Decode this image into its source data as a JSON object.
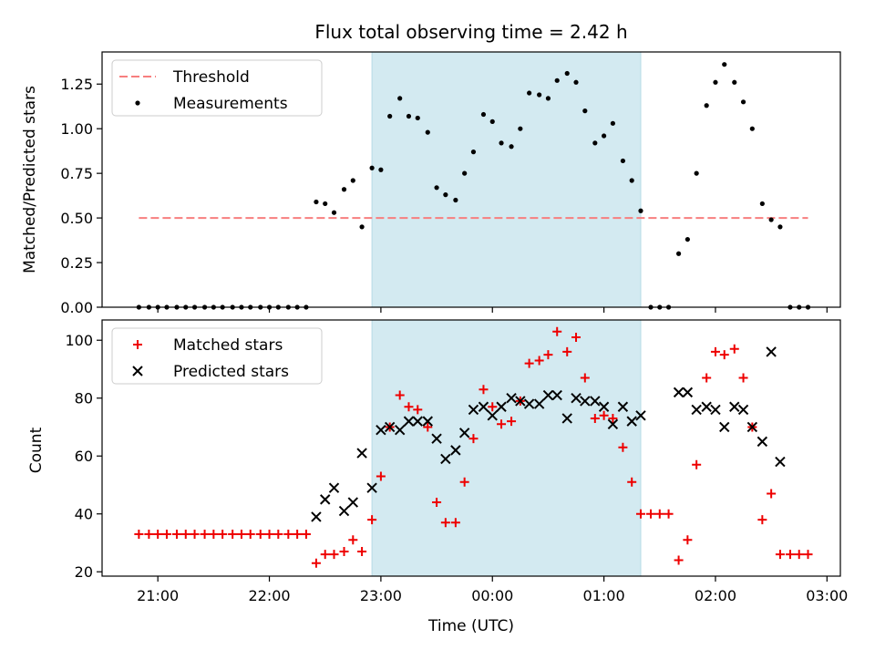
{
  "chart_data": {
    "title": "Flux total observing time = 2.42 h",
    "xlabel": "Time (UTC)",
    "x_ticks": [
      "21:00",
      "22:00",
      "23:00",
      "00:00",
      "01:00",
      "02:00",
      "03:00"
    ],
    "x_tick_hours": [
      21,
      22,
      23,
      24,
      25,
      26,
      27
    ],
    "xlim": [
      20.5,
      27.12
    ],
    "highlight_span_hours": [
      22.92,
      25.33
    ],
    "colors": {
      "highlight": "#d3eaf1",
      "threshold": "#f77f7f",
      "matched": "#ee0000",
      "predicted": "#000000"
    },
    "panels": [
      {
        "type": "scatter",
        "ylabel": "Matched/Predicted stars",
        "ylim": [
          0,
          1.43
        ],
        "y_ticks": [
          0.0,
          0.25,
          0.5,
          0.75,
          1.0,
          1.25
        ],
        "y_tick_labels": [
          "0.00",
          "0.25",
          "0.50",
          "0.75",
          "1.00",
          "1.25"
        ],
        "legend_position": "top-left",
        "threshold": {
          "name": "Threshold",
          "y": 0.5,
          "x_range": [
            20.83,
            26.83
          ]
        },
        "series": [
          {
            "name": "Measurements",
            "marker": "dot",
            "points": [
              [
                20.83,
                0
              ],
              [
                20.92,
                0
              ],
              [
                21.0,
                0
              ],
              [
                21.08,
                0
              ],
              [
                21.17,
                0
              ],
              [
                21.25,
                0
              ],
              [
                21.33,
                0
              ],
              [
                21.42,
                0
              ],
              [
                21.5,
                0
              ],
              [
                21.58,
                0
              ],
              [
                21.67,
                0
              ],
              [
                21.75,
                0
              ],
              [
                21.83,
                0
              ],
              [
                21.92,
                0
              ],
              [
                22.0,
                0
              ],
              [
                22.08,
                0
              ],
              [
                22.17,
                0
              ],
              [
                22.25,
                0
              ],
              [
                22.33,
                0
              ],
              [
                22.42,
                0.59
              ],
              [
                22.5,
                0.58
              ],
              [
                22.58,
                0.53
              ],
              [
                22.67,
                0.66
              ],
              [
                22.75,
                0.71
              ],
              [
                22.83,
                0.45
              ],
              [
                22.92,
                0.78
              ],
              [
                23.0,
                0.77
              ],
              [
                23.08,
                1.07
              ],
              [
                23.17,
                1.17
              ],
              [
                23.25,
                1.07
              ],
              [
                23.33,
                1.06
              ],
              [
                23.42,
                0.98
              ],
              [
                23.5,
                0.67
              ],
              [
                23.58,
                0.63
              ],
              [
                23.67,
                0.6
              ],
              [
                23.75,
                0.75
              ],
              [
                23.83,
                0.87
              ],
              [
                23.92,
                1.08
              ],
              [
                24.0,
                1.04
              ],
              [
                24.08,
                0.92
              ],
              [
                24.17,
                0.9
              ],
              [
                24.25,
                1.0
              ],
              [
                24.33,
                1.2
              ],
              [
                24.42,
                1.19
              ],
              [
                24.5,
                1.17
              ],
              [
                24.58,
                1.27
              ],
              [
                24.67,
                1.31
              ],
              [
                24.75,
                1.26
              ],
              [
                24.83,
                1.1
              ],
              [
                24.92,
                0.92
              ],
              [
                25.0,
                0.96
              ],
              [
                25.08,
                1.03
              ],
              [
                25.17,
                0.82
              ],
              [
                25.25,
                0.71
              ],
              [
                25.33,
                0.54
              ],
              [
                25.42,
                0
              ],
              [
                25.5,
                0
              ],
              [
                25.58,
                0
              ],
              [
                25.67,
                0.3
              ],
              [
                25.75,
                0.38
              ],
              [
                25.83,
                0.75
              ],
              [
                25.92,
                1.13
              ],
              [
                26.0,
                1.26
              ],
              [
                26.08,
                1.36
              ],
              [
                26.17,
                1.26
              ],
              [
                26.25,
                1.15
              ],
              [
                26.33,
                1.0
              ],
              [
                26.42,
                0.58
              ],
              [
                26.5,
                0.49
              ],
              [
                26.58,
                0.45
              ],
              [
                26.67,
                0
              ],
              [
                26.75,
                0
              ],
              [
                26.83,
                0
              ]
            ]
          }
        ]
      },
      {
        "type": "scatter",
        "ylabel": "Count",
        "ylim": [
          18.5,
          107
        ],
        "y_ticks": [
          20,
          40,
          60,
          80,
          100
        ],
        "y_tick_labels": [
          "20",
          "40",
          "60",
          "80",
          "100"
        ],
        "legend_position": "top-left",
        "series": [
          {
            "name": "Matched stars",
            "marker": "plus",
            "points": [
              [
                20.83,
                33
              ],
              [
                20.92,
                33
              ],
              [
                21.0,
                33
              ],
              [
                21.08,
                33
              ],
              [
                21.17,
                33
              ],
              [
                21.25,
                33
              ],
              [
                21.33,
                33
              ],
              [
                21.42,
                33
              ],
              [
                21.5,
                33
              ],
              [
                21.58,
                33
              ],
              [
                21.67,
                33
              ],
              [
                21.75,
                33
              ],
              [
                21.83,
                33
              ],
              [
                21.92,
                33
              ],
              [
                22.0,
                33
              ],
              [
                22.08,
                33
              ],
              [
                22.17,
                33
              ],
              [
                22.25,
                33
              ],
              [
                22.33,
                33
              ],
              [
                22.42,
                23
              ],
              [
                22.5,
                26
              ],
              [
                22.58,
                26
              ],
              [
                22.67,
                27
              ],
              [
                22.75,
                31
              ],
              [
                22.83,
                27
              ],
              [
                22.92,
                38
              ],
              [
                23.0,
                53
              ],
              [
                23.08,
                70
              ],
              [
                23.17,
                81
              ],
              [
                23.25,
                77
              ],
              [
                23.33,
                76
              ],
              [
                23.42,
                70
              ],
              [
                23.5,
                44
              ],
              [
                23.58,
                37
              ],
              [
                23.67,
                37
              ],
              [
                23.75,
                51
              ],
              [
                23.83,
                66
              ],
              [
                23.92,
                83
              ],
              [
                24.0,
                77
              ],
              [
                24.08,
                71
              ],
              [
                24.17,
                72
              ],
              [
                24.25,
                79
              ],
              [
                24.33,
                92
              ],
              [
                24.42,
                93
              ],
              [
                24.5,
                95
              ],
              [
                24.58,
                103
              ],
              [
                24.67,
                96
              ],
              [
                24.75,
                101
              ],
              [
                24.83,
                87
              ],
              [
                24.92,
                73
              ],
              [
                25.0,
                74
              ],
              [
                25.08,
                73
              ],
              [
                25.17,
                63
              ],
              [
                25.25,
                51
              ],
              [
                25.33,
                40
              ],
              [
                25.42,
                40
              ],
              [
                25.5,
                40
              ],
              [
                25.58,
                40
              ],
              [
                25.67,
                24
              ],
              [
                25.75,
                31
              ],
              [
                25.83,
                57
              ],
              [
                25.92,
                87
              ],
              [
                26.0,
                96
              ],
              [
                26.08,
                95
              ],
              [
                26.17,
                97
              ],
              [
                26.25,
                87
              ],
              [
                26.33,
                70
              ],
              [
                26.42,
                38
              ],
              [
                26.5,
                47
              ],
              [
                26.58,
                26
              ],
              [
                26.67,
                26
              ],
              [
                26.75,
                26
              ],
              [
                26.83,
                26
              ]
            ]
          },
          {
            "name": "Predicted stars",
            "marker": "x",
            "points": [
              [
                22.42,
                39
              ],
              [
                22.5,
                45
              ],
              [
                22.58,
                49
              ],
              [
                22.67,
                41
              ],
              [
                22.75,
                44
              ],
              [
                22.83,
                61
              ],
              [
                22.92,
                49
              ],
              [
                23.0,
                69
              ],
              [
                23.08,
                70
              ],
              [
                23.17,
                69
              ],
              [
                23.25,
                72
              ],
              [
                23.33,
                72
              ],
              [
                23.42,
                72
              ],
              [
                23.5,
                66
              ],
              [
                23.58,
                59
              ],
              [
                23.67,
                62
              ],
              [
                23.75,
                68
              ],
              [
                23.83,
                76
              ],
              [
                23.92,
                77
              ],
              [
                24.0,
                74
              ],
              [
                24.08,
                77
              ],
              [
                24.17,
                80
              ],
              [
                24.25,
                79
              ],
              [
                24.33,
                78
              ],
              [
                24.42,
                78
              ],
              [
                24.5,
                81
              ],
              [
                24.58,
                81
              ],
              [
                24.67,
                73
              ],
              [
                24.75,
                80
              ],
              [
                24.83,
                79
              ],
              [
                24.92,
                79
              ],
              [
                25.0,
                77
              ],
              [
                25.08,
                71
              ],
              [
                25.17,
                77
              ],
              [
                25.25,
                72
              ],
              [
                25.33,
                74
              ],
              [
                25.67,
                82
              ],
              [
                25.75,
                82
              ],
              [
                25.83,
                76
              ],
              [
                25.92,
                77
              ],
              [
                26.0,
                76
              ],
              [
                26.08,
                70
              ],
              [
                26.17,
                77
              ],
              [
                26.25,
                76
              ],
              [
                26.33,
                70
              ],
              [
                26.42,
                65
              ],
              [
                26.5,
                96
              ],
              [
                26.58,
                58
              ]
            ]
          }
        ]
      }
    ]
  }
}
